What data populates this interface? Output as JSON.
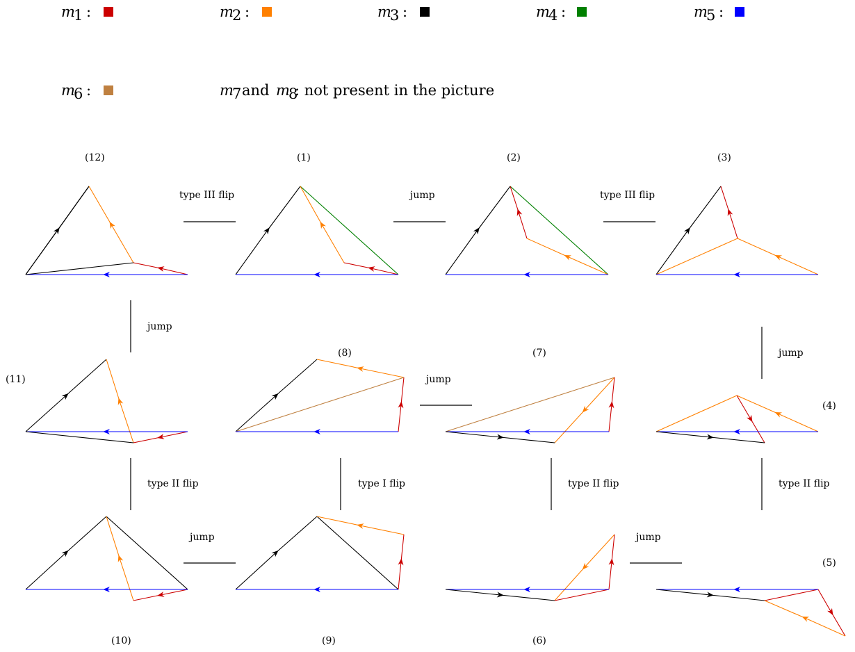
{
  "colors": {
    "m1": "#cc0000",
    "m2": "#ff8000",
    "m3": "#000000",
    "m4": "#008000",
    "m5": "#0000ff",
    "m6": "#bf8040"
  },
  "legend": {
    "m1_label": "m",
    "m1_sub": "1",
    "m2_label": "m",
    "m2_sub": "2",
    "m3_label": "m",
    "m3_sub": "3",
    "m4_label": "m",
    "m4_sub": "4",
    "m5_label": "m",
    "m5_sub": "5",
    "m6_label": "m",
    "m6_sub": "6",
    "colon": ":",
    "note_m": "m",
    "note_sub7": "7",
    "note_and": "and",
    "note_sub8": "8",
    "note_text": ": not present in the picture"
  },
  "panels": {
    "p1": "(1)",
    "p2": "(2)",
    "p3": "(3)",
    "p4": "(4)",
    "p5": "(5)",
    "p6": "(6)",
    "p7": "(7)",
    "p8": "(8)",
    "p9": "(9)",
    "p10": "(10)",
    "p11": "(11)",
    "p12": "(12)"
  },
  "operations": {
    "op_12_1": "type III flip",
    "op_1_2": "jump",
    "op_2_3": "type III flip",
    "op_3_4": "jump",
    "op_4_5": "type II flip",
    "op_5_6": "jump",
    "op_6_7": "type II flip",
    "op_7_8": "jump",
    "op_8_9": "type I flip",
    "op_9_10": "jump",
    "op_10_11": "type II flip",
    "op_11_12": "jump"
  }
}
